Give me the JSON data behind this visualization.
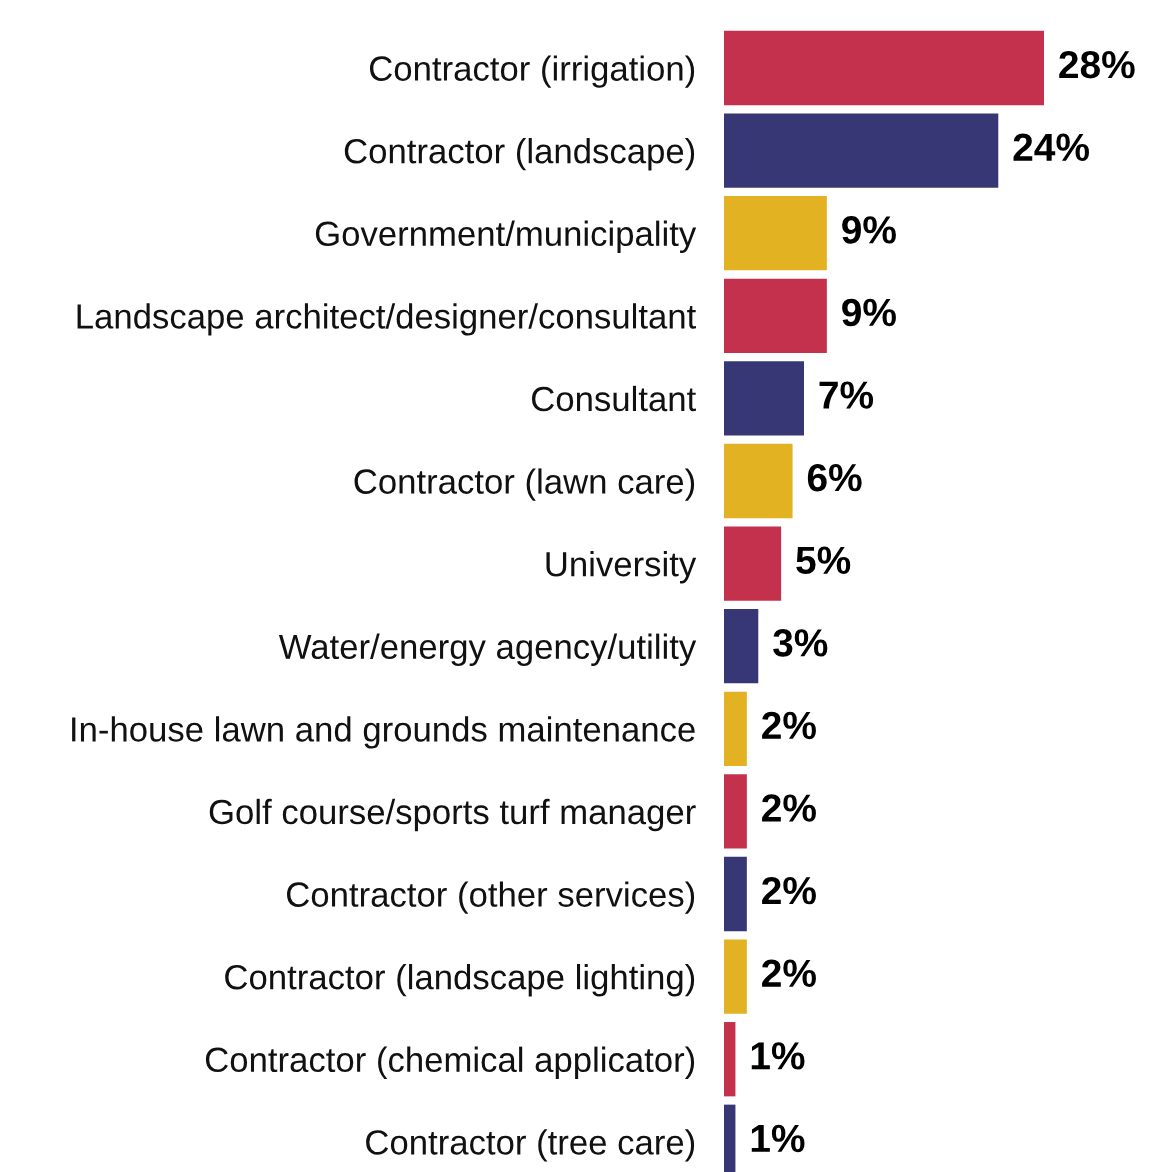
{
  "chart_data": {
    "type": "bar",
    "orientation": "horizontal",
    "categories": [
      "Contractor (irrigation)",
      "Contractor (landscape)",
      "Government/municipality",
      "Landscape architect/designer/consultant",
      "Consultant",
      "Contractor (lawn care)",
      "University",
      "Water/energy agency/utility",
      "In-house lawn and grounds maintenance",
      "Golf course/sports turf manager",
      "Contractor (other services)",
      "Contractor (landscape lighting)",
      "Contractor (chemical applicator)",
      "Contractor (tree care)"
    ],
    "values": [
      28,
      24,
      9,
      9,
      7,
      6,
      5,
      3,
      2,
      2,
      2,
      2,
      1,
      1
    ],
    "value_labels": [
      "28%",
      "24%",
      "9%",
      "9%",
      "7%",
      "6%",
      "5%",
      "3%",
      "2%",
      "2%",
      "2%",
      "2%",
      "1%",
      "1%"
    ],
    "colors": [
      "#c4314d",
      "#383775",
      "#e3b223",
      "#c4314d",
      "#383775",
      "#e3b223",
      "#c4314d",
      "#383775",
      "#e3b223",
      "#c4314d",
      "#383775",
      "#e3b223",
      "#c4314d",
      "#383775"
    ]
  }
}
